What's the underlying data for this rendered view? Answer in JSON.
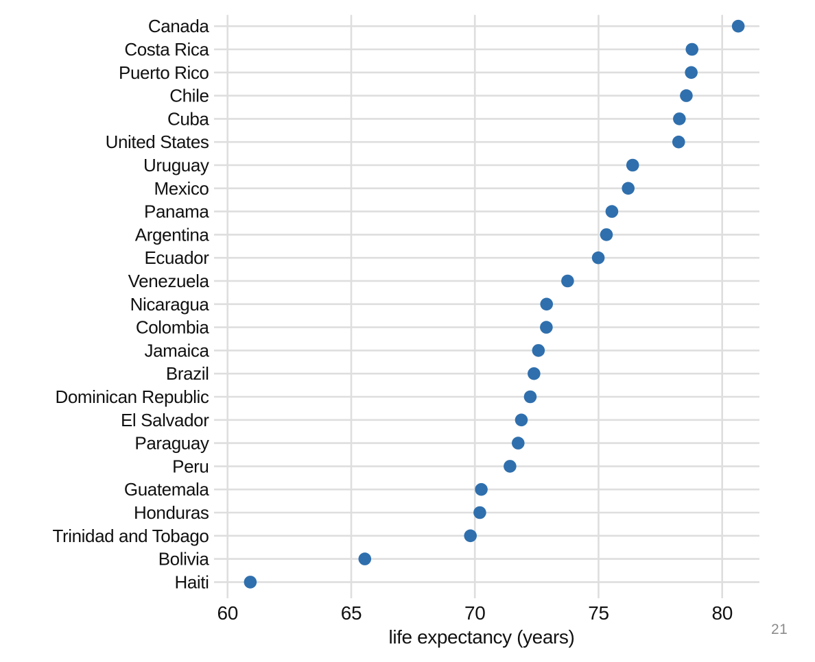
{
  "page_number": "21",
  "chart_data": {
    "type": "scatter",
    "variant": "cleveland-dot-plot",
    "title": "",
    "xlabel": "life expectancy (years)",
    "ylabel": "",
    "categories": [
      "Canada",
      "Costa Rica",
      "Puerto Rico",
      "Chile",
      "Cuba",
      "United States",
      "Uruguay",
      "Mexico",
      "Panama",
      "Argentina",
      "Ecuador",
      "Venezuela",
      "Nicaragua",
      "Colombia",
      "Jamaica",
      "Brazil",
      "Dominican Republic",
      "El Salvador",
      "Paraguay",
      "Peru",
      "Guatemala",
      "Honduras",
      "Trinidad and Tobago",
      "Bolivia",
      "Haiti"
    ],
    "values": [
      80.65,
      78.78,
      78.75,
      78.55,
      78.27,
      78.24,
      76.38,
      76.2,
      75.54,
      75.32,
      74.99,
      73.75,
      72.9,
      72.89,
      72.57,
      72.39,
      72.24,
      71.88,
      71.75,
      71.42,
      70.26,
      70.2,
      69.82,
      65.55,
      60.92
    ],
    "x_ticks": [
      60,
      65,
      70,
      75,
      80
    ],
    "xlim": [
      59.5,
      81.5
    ],
    "grid": "both",
    "legend": "none",
    "colors": {
      "dot": "#2f6fad",
      "grid": "#dedede",
      "text": "#111111",
      "page_number": "#8b8b8b"
    }
  }
}
